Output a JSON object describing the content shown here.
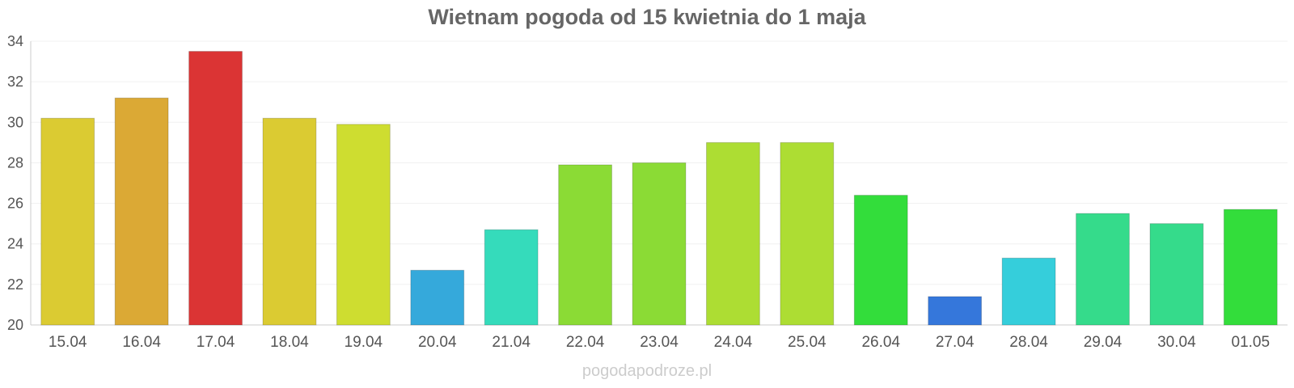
{
  "chart_data": {
    "type": "bar",
    "title": "Wietnam pogoda od 15 kwietnia do 1 maja",
    "xlabel": "",
    "ylabel": "",
    "ylim": [
      20,
      34
    ],
    "yticks": [
      20,
      22,
      24,
      26,
      28,
      30,
      32,
      34
    ],
    "grid": true,
    "categories": [
      "15.04",
      "16.04",
      "17.04",
      "18.04",
      "19.04",
      "20.04",
      "21.04",
      "22.04",
      "23.04",
      "24.04",
      "25.04",
      "26.04",
      "27.04",
      "28.04",
      "29.04",
      "30.04",
      "01.05"
    ],
    "values": [
      30.2,
      31.2,
      33.5,
      30.2,
      29.9,
      22.7,
      24.7,
      27.9,
      28.0,
      29.0,
      29.0,
      26.4,
      21.4,
      23.3,
      25.5,
      25.0,
      25.7
    ],
    "colors": [
      "#dbcb32",
      "#dba935",
      "#db3434",
      "#dbcb32",
      "#cedd30",
      "#35a9db",
      "#35dbbb",
      "#8bdb35",
      "#8bdb35",
      "#addd33",
      "#addd33",
      "#33dd3b",
      "#3577db",
      "#35cedb",
      "#35db8b",
      "#35db8b",
      "#33dd3b"
    ]
  },
  "watermark": "pogodapodroze.pl"
}
